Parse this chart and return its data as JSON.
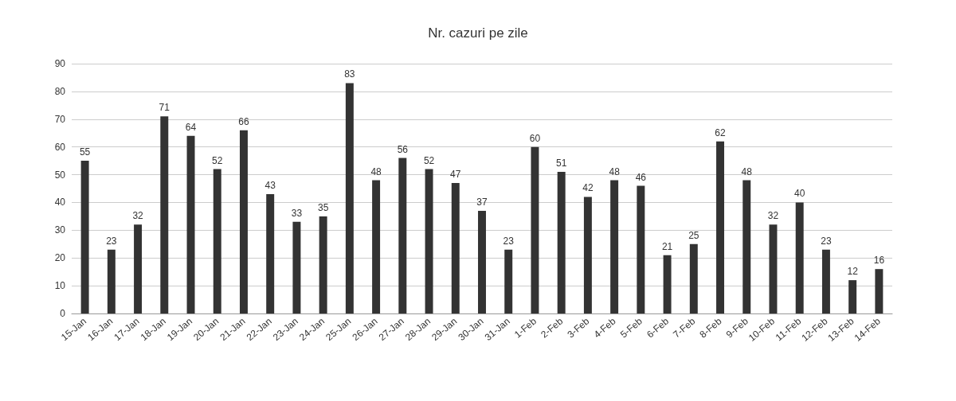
{
  "chart_data": {
    "type": "bar",
    "title": "Nr. cazuri pe zile",
    "categories": [
      "15-Jan",
      "16-Jan",
      "17-Jan",
      "18-Jan",
      "19-Jan",
      "20-Jan",
      "21-Jan",
      "22-Jan",
      "23-Jan",
      "24-Jan",
      "25-Jan",
      "26-Jan",
      "27-Jan",
      "28-Jan",
      "29-Jan",
      "30-Jan",
      "31-Jan",
      "1-Feb",
      "2-Feb",
      "3-Feb",
      "4-Feb",
      "5-Feb",
      "6-Feb",
      "7-Feb",
      "8-Feb",
      "9-Feb",
      "10-Feb",
      "11-Feb",
      "12-Feb",
      "13-Feb",
      "14-Feb"
    ],
    "values": [
      55,
      23,
      32,
      71,
      64,
      52,
      66,
      43,
      33,
      35,
      83,
      48,
      56,
      52,
      47,
      37,
      23,
      60,
      51,
      42,
      48,
      46,
      21,
      25,
      62,
      48,
      32,
      40,
      23,
      12,
      16
    ],
    "color": "#333333",
    "ylim": [
      0,
      90
    ],
    "yticks": [
      0,
      10,
      20,
      30,
      40,
      50,
      60,
      70,
      80,
      90
    ],
    "grid": "y",
    "data_labels": true
  }
}
